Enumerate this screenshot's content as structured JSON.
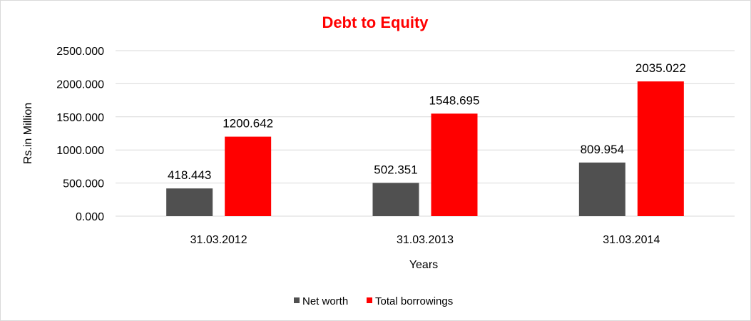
{
  "chart_data": {
    "type": "bar",
    "title": "Debt to Equity",
    "title_color": "#ff0000",
    "xlabel": "Years",
    "ylabel": "Rs.in Million",
    "categories": [
      "31.03.2012",
      "31.03.2013",
      "31.03.2014"
    ],
    "series": [
      {
        "name": "Net worth",
        "color": "#505050",
        "values": [
          418.443,
          502.351,
          809.954
        ],
        "labels": [
          "418.443",
          "502.351",
          "809.954"
        ]
      },
      {
        "name": "Total borrowings",
        "color": "#ff0000",
        "values": [
          1200.642,
          1548.695,
          2035.022
        ],
        "labels": [
          "1200.642",
          "1548.695",
          "2035.022"
        ]
      }
    ],
    "ylim": [
      0,
      2500
    ],
    "yticks": [
      0,
      500,
      1000,
      1500,
      2000,
      2500
    ],
    "ytick_labels": [
      "0.000",
      "500.000",
      "1000.000",
      "1500.000",
      "2000.000",
      "2500.000"
    ],
    "grid": true,
    "legend_position": "bottom"
  }
}
